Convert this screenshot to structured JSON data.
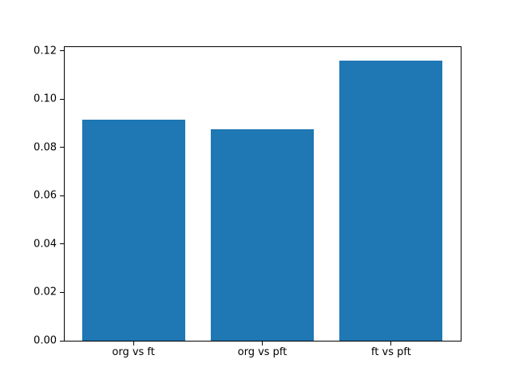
{
  "figure": {
    "background_color": "#ffffff",
    "title": ""
  },
  "chart_data": {
    "type": "bar",
    "categories": [
      "org vs ft",
      "org vs pft",
      "ft vs pft"
    ],
    "values": [
      0.0916,
      0.0877,
      0.1161
    ],
    "title": "",
    "xlabel": "",
    "ylabel": "",
    "ylim": [
      0,
      0.1219
    ],
    "ytick_values": [
      0.0,
      0.02,
      0.04,
      0.06,
      0.08,
      0.1,
      0.12
    ],
    "ytick_labels": [
      "0.00",
      "0.02",
      "0.04",
      "0.06",
      "0.08",
      "0.10",
      "0.12"
    ],
    "bar_color": "#1f77b4",
    "grid": false,
    "legend_position": null,
    "layout_hints": {
      "bar_width_fraction": 0.8,
      "x_margin": 0.54
    }
  }
}
